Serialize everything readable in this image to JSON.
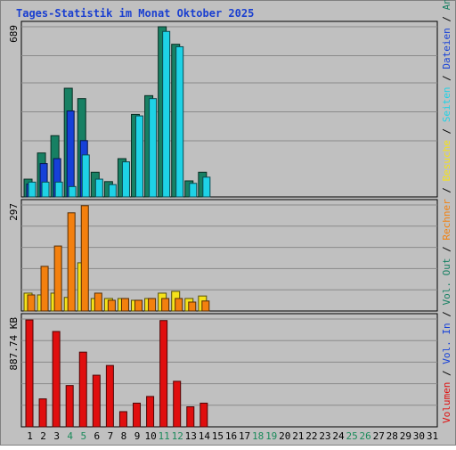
{
  "colors": {
    "background": "#c0c0c0",
    "plot_bg": "#c0c0c0",
    "title": "#1a3fd0",
    "anfragen": "#178063",
    "dateien": "#1540d8",
    "seiten": "#1ed2e6",
    "besuche": "#f5e21a",
    "rechner": "#f3800e",
    "vol_out": "#178063",
    "vol_in": "#1540d8",
    "volumen": "#e00e0e",
    "weekend": "#1a8a5a"
  },
  "chart_data": {
    "title": "Tages-Statistik im Monat Oktober 2025",
    "type": "bar",
    "x": [
      "1",
      "2",
      "3",
      "4",
      "5",
      "6",
      "7",
      "8",
      "9",
      "10",
      "11",
      "12",
      "13",
      "14",
      "15",
      "16",
      "17",
      "18",
      "19",
      "20",
      "21",
      "22",
      "23",
      "24",
      "25",
      "26",
      "27",
      "28",
      "29",
      "30",
      "31"
    ],
    "weekend_days": [
      "4",
      "5",
      "11",
      "12",
      "18",
      "19",
      "25",
      "26"
    ],
    "panels": [
      {
        "id": "top",
        "ymax_label": "689",
        "ymax": 689,
        "series": [
          {
            "name": "Anfragen",
            "color_key": "anfragen",
            "values": [
              72,
              178,
              248,
              440,
              398,
              100,
              62,
              155,
              334,
              410,
              689,
              618,
              65,
              100
            ]
          },
          {
            "name": "Dateien",
            "color_key": "dateien",
            "values": [
              52,
              135,
              155,
              348,
              228,
              0,
              0,
              0,
              0,
              0,
              0,
              0,
              0,
              0
            ]
          },
          {
            "name": "Seiten",
            "color_key": "seiten",
            "values": [
              60,
              60,
              60,
              42,
              170,
              72,
              50,
              142,
              328,
              398,
              670,
              608,
              55,
              80
            ]
          }
        ]
      },
      {
        "id": "middle",
        "ymax_label": "297",
        "ymax": 297,
        "series": [
          {
            "name": "Besuche",
            "color_key": "besuche",
            "values": [
              50,
              45,
              50,
              38,
              135,
              35,
              35,
              35,
              30,
              35,
              50,
              55,
              35,
              42
            ]
          },
          {
            "name": "Rechner",
            "color_key": "rechner",
            "values": [
              45,
              125,
              182,
              275,
              295,
              50,
              30,
              35,
              30,
              35,
              35,
              35,
              25,
              28
            ]
          }
        ]
      },
      {
        "id": "bottom",
        "ymax_label": "887.74 KB",
        "ymax": 887.74,
        "series": [
          {
            "name": "Volumen",
            "color_key": "volumen",
            "values": [
              880,
              230,
              785,
              340,
              615,
              425,
              505,
              125,
              195,
              250,
              875,
              375,
              165,
              195
            ]
          }
        ]
      }
    ],
    "legend": {
      "orientation": "vertical-right",
      "top": [
        {
          "text": "Anfragen",
          "color_key": "anfragen"
        },
        {
          "text": "Dateien",
          "color_key": "dateien"
        },
        {
          "text": "Seiten",
          "color_key": "seiten"
        },
        {
          "text": "Besuche",
          "color_key": "besuche"
        },
        {
          "text": "Rechner",
          "color_key": "rechner"
        },
        {
          "text": "Vol. Out",
          "color_key": "vol_out"
        },
        {
          "text": "Vol. In",
          "color_key": "vol_in"
        },
        {
          "text": "Volumen",
          "color_key": "volumen"
        }
      ],
      "separator": " / "
    },
    "grid": true
  }
}
